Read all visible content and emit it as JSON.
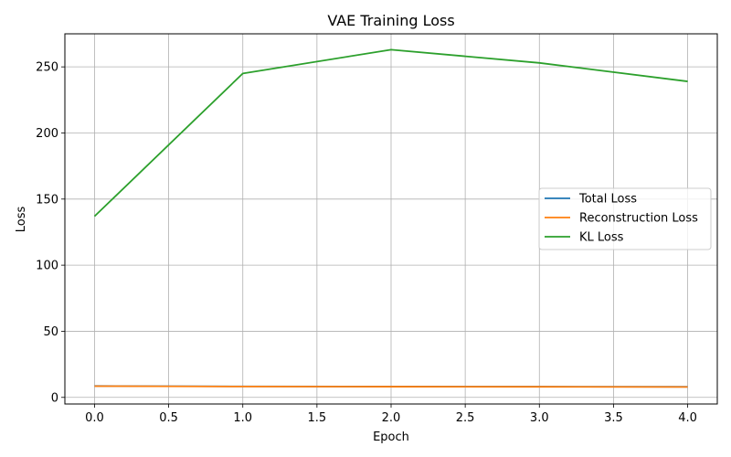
{
  "chart_data": {
    "type": "line",
    "title": "VAE Training Loss",
    "xlabel": "Epoch",
    "ylabel": "Loss",
    "x": [
      0,
      1,
      2,
      3,
      4
    ],
    "xlim": [
      -0.2,
      4.2
    ],
    "ylim": [
      -5,
      275
    ],
    "xticks": [
      0.0,
      0.5,
      1.0,
      1.5,
      2.0,
      2.5,
      3.0,
      3.5,
      4.0
    ],
    "xtick_labels": [
      "0.0",
      "0.5",
      "1.0",
      "1.5",
      "2.0",
      "2.5",
      "3.0",
      "3.5",
      "4.0"
    ],
    "yticks": [
      0,
      50,
      100,
      150,
      200,
      250
    ],
    "ytick_labels": [
      "0",
      "50",
      "100",
      "150",
      "200",
      "250"
    ],
    "grid": true,
    "legend_position": "center-right",
    "series": [
      {
        "name": "Total Loss",
        "color": "#1f77b4",
        "values": [
          8.6,
          8.3,
          8.2,
          8.1,
          8.0
        ]
      },
      {
        "name": "Reconstruction Loss",
        "color": "#ff7f0e",
        "values": [
          8.5,
          8.2,
          8.1,
          8.0,
          7.9
        ]
      },
      {
        "name": "KL Loss",
        "color": "#2ca02c",
        "values": [
          137,
          245,
          263,
          253,
          239
        ]
      }
    ]
  }
}
